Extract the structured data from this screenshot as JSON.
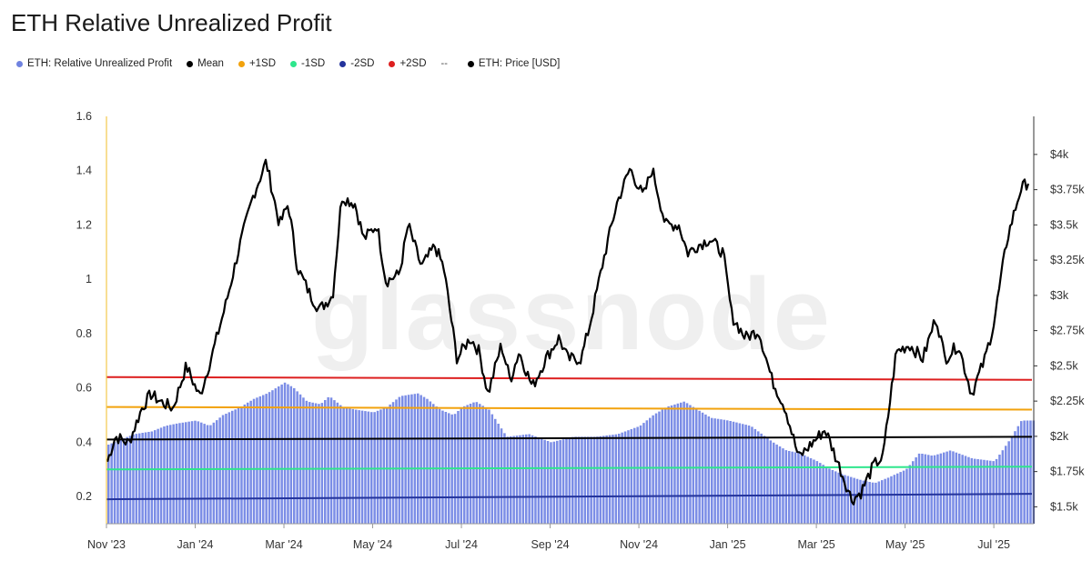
{
  "chart_data": {
    "type": "bar",
    "title": "ETH Relative Unrealized Profit",
    "watermark": "glassnode",
    "legend": [
      {
        "label": "ETH: Relative Unrealized Profit",
        "color": "#7083e0",
        "marker": "dot"
      },
      {
        "label": "Mean",
        "color": "#000000",
        "marker": "dot"
      },
      {
        "label": "+1SD",
        "color": "#f2a20d",
        "marker": "dot"
      },
      {
        "label": "-1SD",
        "color": "#2ee68c",
        "marker": "dot"
      },
      {
        "label": "-2SD",
        "color": "#24349c",
        "marker": "dot"
      },
      {
        "label": "+2SD",
        "color": "#dd1f1f",
        "marker": "dot"
      },
      {
        "label": "--",
        "color": "#444444",
        "marker": "text"
      },
      {
        "label": "ETH: Price [USD]",
        "color": "#000000",
        "marker": "dot"
      }
    ],
    "x_labels": [
      "Nov '23",
      "Jan '24",
      "Mar '24",
      "May '24",
      "Jul '24",
      "Sep '24",
      "Nov '24",
      "Jan '25",
      "Mar '25",
      "May '25",
      "Jul '25"
    ],
    "x_label_months": [
      0,
      2,
      4,
      6,
      8,
      10,
      12,
      14,
      16,
      18,
      20
    ],
    "x_range_months": [
      0,
      20.9
    ],
    "y_left": {
      "ticks": [
        1.6,
        1.4,
        1.2,
        1,
        0.8,
        0.6,
        0.4,
        0.2
      ],
      "tick_labels": [
        "1.6",
        "1.4",
        "1.2",
        "1",
        "0.8",
        "0.6",
        "0.4",
        "0.2"
      ],
      "range": [
        0.1,
        1.6
      ]
    },
    "y_right": {
      "ticks": [
        4000,
        3750,
        3500,
        3250,
        3000,
        2750,
        2500,
        2250,
        2000,
        1750,
        1500
      ],
      "tick_labels": [
        "$4k",
        "$3.75k",
        "$3.5k",
        "$3.25k",
        "$3k",
        "$2.75k",
        "$2.5k",
        "$2.25k",
        "$2k",
        "$1.75k",
        "$1.5k"
      ],
      "range": [
        1380,
        4270
      ]
    },
    "relative_unrealized_profit": {
      "months": [
        0,
        0.3,
        0.6,
        1.0,
        1.3,
        1.6,
        2.0,
        2.3,
        2.6,
        3.0,
        3.3,
        3.6,
        4.0,
        4.2,
        4.5,
        4.8,
        5.0,
        5.3,
        5.6,
        6.0,
        6.3,
        6.6,
        7.0,
        7.2,
        7.5,
        7.8,
        8.0,
        8.3,
        8.6,
        9.0,
        9.5,
        10.0,
        10.5,
        11.0,
        11.5,
        12.0,
        12.3,
        12.6,
        13.0,
        13.3,
        13.6,
        14.0,
        14.5,
        15.0,
        15.3,
        15.6,
        16.0,
        16.3,
        16.6,
        17.0,
        17.3,
        17.6,
        18.0,
        18.3,
        18.6,
        19.0,
        19.5,
        20.0,
        20.3,
        20.6,
        20.9
      ],
      "values": [
        0.39,
        0.41,
        0.43,
        0.44,
        0.46,
        0.47,
        0.48,
        0.46,
        0.5,
        0.53,
        0.56,
        0.58,
        0.62,
        0.6,
        0.55,
        0.54,
        0.57,
        0.53,
        0.52,
        0.51,
        0.53,
        0.57,
        0.58,
        0.56,
        0.52,
        0.5,
        0.53,
        0.55,
        0.52,
        0.42,
        0.43,
        0.4,
        0.42,
        0.42,
        0.43,
        0.46,
        0.5,
        0.53,
        0.55,
        0.52,
        0.49,
        0.48,
        0.46,
        0.4,
        0.37,
        0.36,
        0.33,
        0.3,
        0.28,
        0.26,
        0.25,
        0.27,
        0.3,
        0.36,
        0.35,
        0.37,
        0.34,
        0.33,
        0.4,
        0.48,
        0.48
      ]
    },
    "reference_lines": {
      "mean": {
        "start": 0.41,
        "end": 0.42,
        "color": "#000000"
      },
      "plus_1sd": {
        "start": 0.53,
        "end": 0.52,
        "color": "#f2a20d"
      },
      "minus_1sd": {
        "start": 0.3,
        "end": 0.31,
        "color": "#2ee68c"
      },
      "minus_2sd": {
        "start": 0.19,
        "end": 0.21,
        "color": "#24349c"
      },
      "plus_2sd": {
        "start": 0.64,
        "end": 0.63,
        "color": "#dd1f1f"
      }
    },
    "eth_price": {
      "months": [
        0,
        0.2,
        0.5,
        0.8,
        1.0,
        1.2,
        1.5,
        1.8,
        2.1,
        2.4,
        2.7,
        3.0,
        3.3,
        3.6,
        3.9,
        4.1,
        4.3,
        4.6,
        4.8,
        5.1,
        5.3,
        5.6,
        5.8,
        6.1,
        6.3,
        6.6,
        6.8,
        7.1,
        7.4,
        7.6,
        7.9,
        8.2,
        8.4,
        8.6,
        8.9,
        9.1,
        9.3,
        9.6,
        9.9,
        10.2,
        10.4,
        10.7,
        10.9,
        11.2,
        11.5,
        11.8,
        12.1,
        12.3,
        12.6,
        12.9,
        13.1,
        13.3,
        13.6,
        13.9,
        14.1,
        14.4,
        14.7,
        15.0,
        15.3,
        15.6,
        15.9,
        16.2,
        16.5,
        16.8,
        17.0,
        17.3,
        17.5,
        17.8,
        18.1,
        18.4,
        18.7,
        18.9,
        19.2,
        19.5,
        19.8,
        20.0,
        20.3,
        20.6,
        20.9
      ],
      "values": [
        1800,
        2000,
        1950,
        2200,
        2300,
        2250,
        2200,
        2500,
        2280,
        2600,
        2950,
        3350,
        3700,
        3950,
        3500,
        3650,
        3200,
        3000,
        2900,
        3000,
        3700,
        3650,
        3400,
        3500,
        3100,
        3150,
        3500,
        3200,
        3350,
        3200,
        2550,
        2700,
        2600,
        2300,
        2650,
        2400,
        2600,
        2350,
        2550,
        2700,
        2550,
        2550,
        2800,
        3250,
        3650,
        3900,
        3700,
        3900,
        3500,
        3500,
        3300,
        3350,
        3400,
        3300,
        2850,
        2700,
        2750,
        2400,
        2200,
        1850,
        1950,
        2050,
        1800,
        1550,
        1600,
        1800,
        1850,
        2600,
        2650,
        2550,
        2850,
        2550,
        2650,
        2300,
        2550,
        2800,
        3400,
        3750,
        3850
      ]
    }
  }
}
